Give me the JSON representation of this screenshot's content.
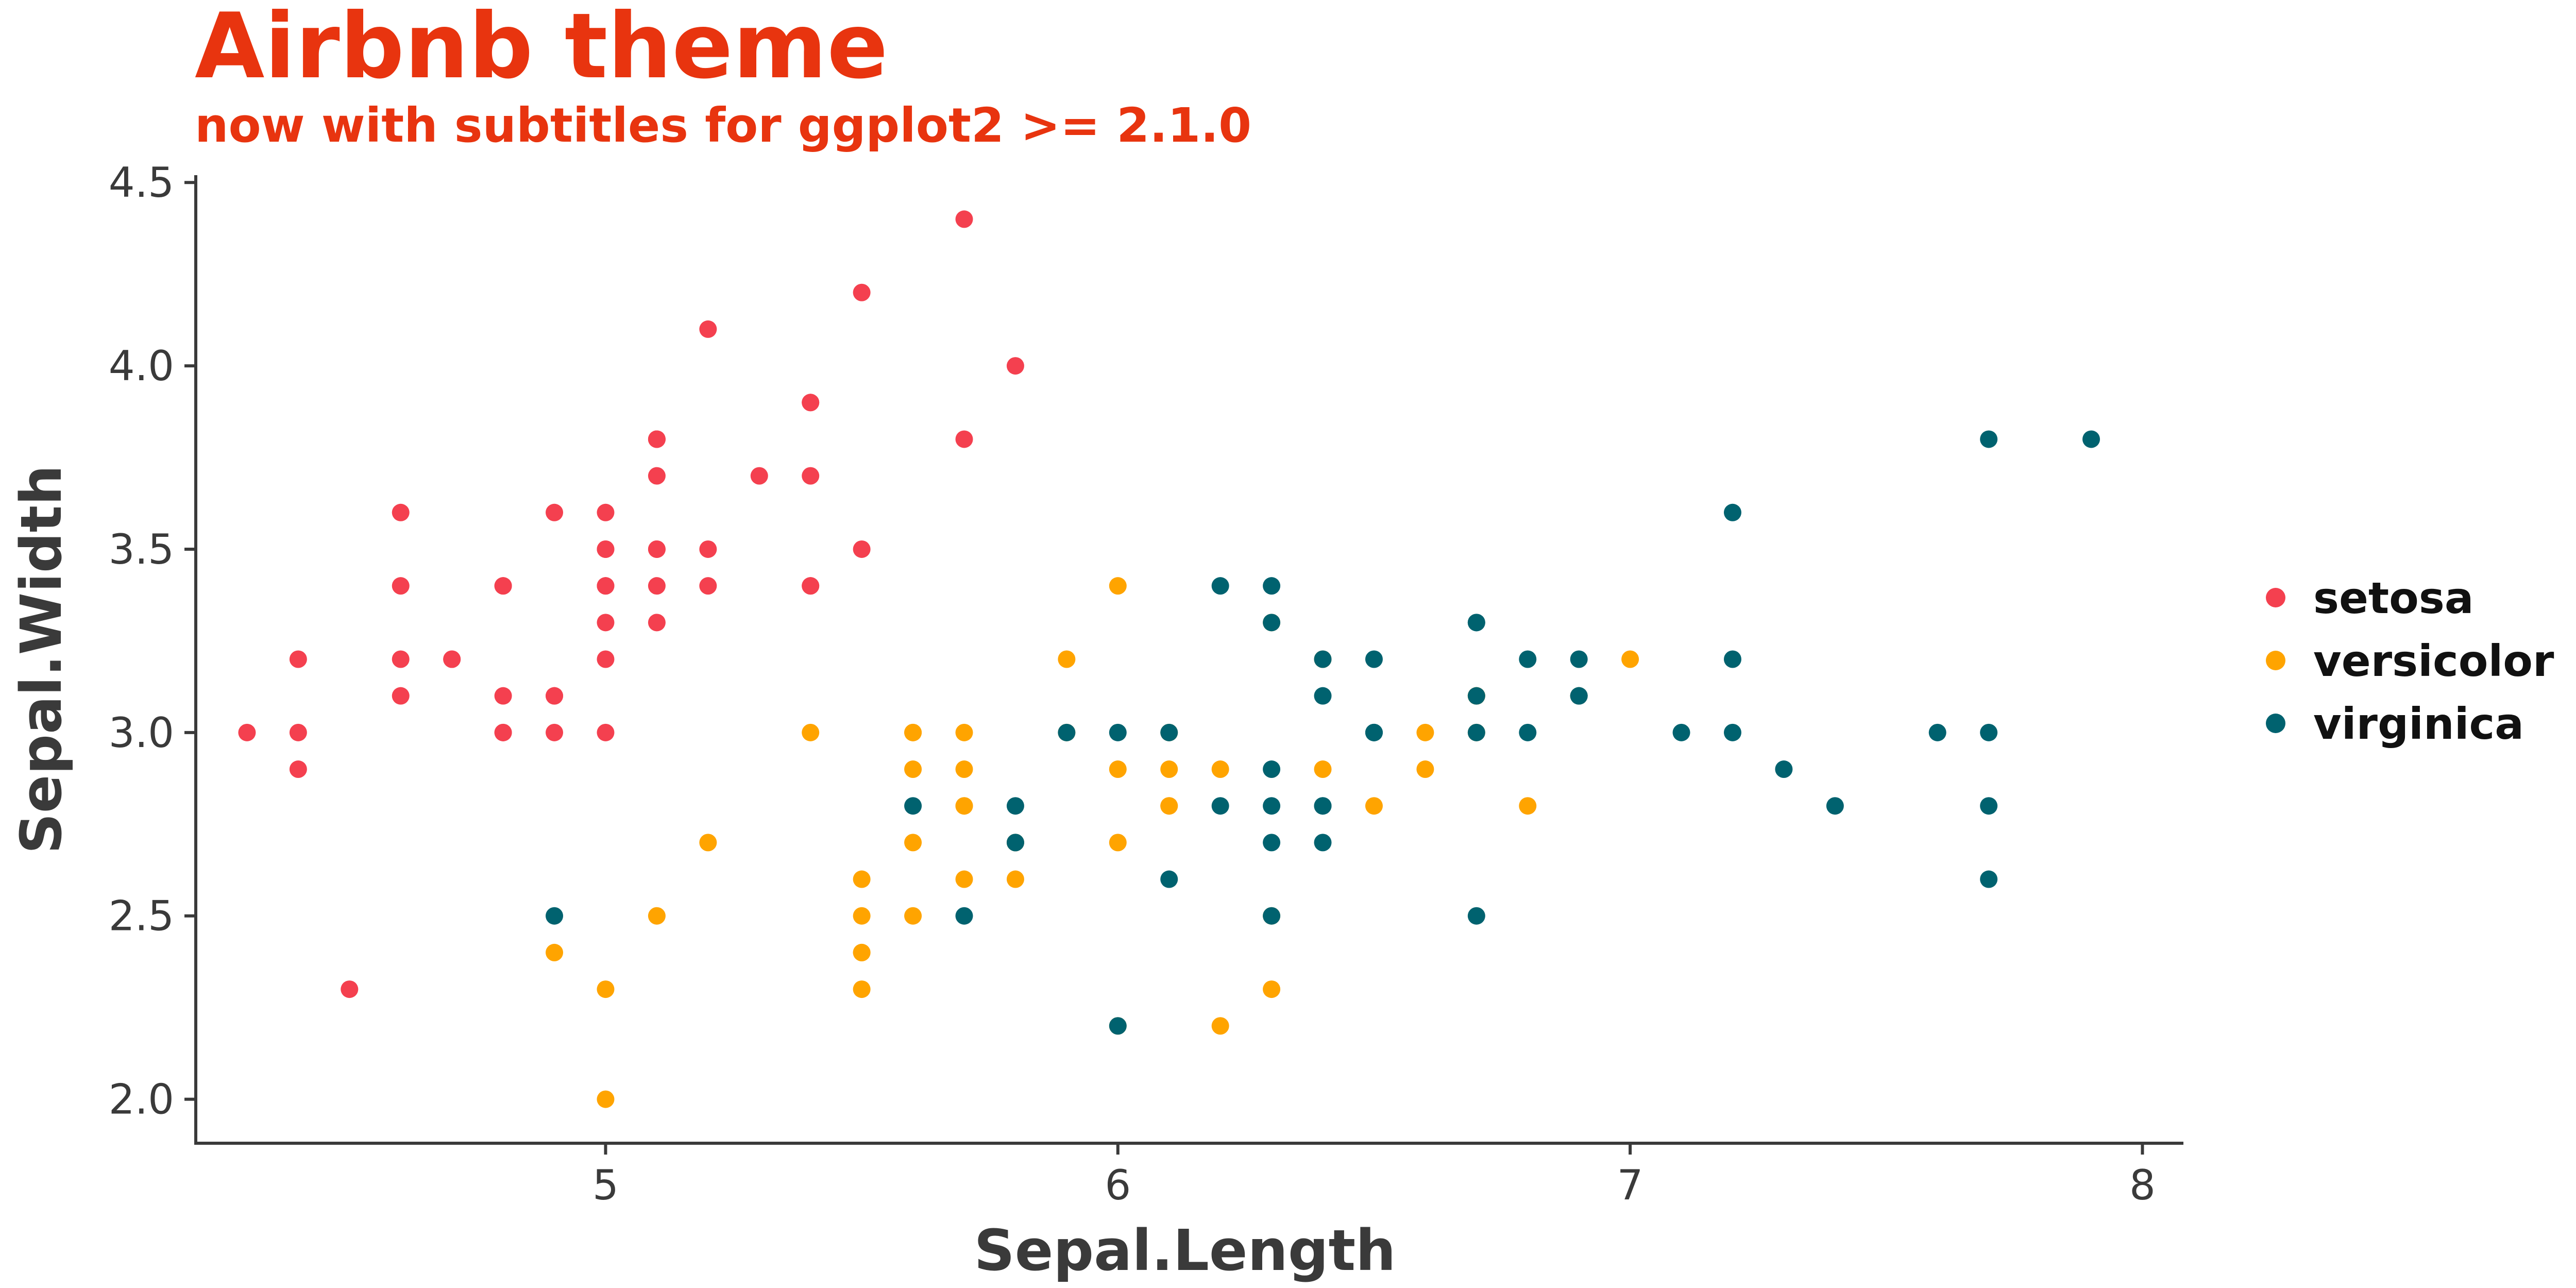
{
  "chart_data": {
    "type": "scatter",
    "title": "Airbnb theme",
    "subtitle": "now with subtitles for ggplot2 >= 2.1.0",
    "xlabel": "Sepal.Length",
    "ylabel": "Sepal.Width",
    "xlim": [
      4.2,
      8.08
    ],
    "ylim": [
      1.88,
      4.52
    ],
    "xticks": [
      5,
      6,
      7,
      8
    ],
    "yticks": [
      2.0,
      2.5,
      3.0,
      3.5,
      4.0,
      4.5
    ],
    "xtick_labels": [
      "5",
      "6",
      "7",
      "8"
    ],
    "ytick_labels": [
      "2.0",
      "2.5",
      "3.0",
      "3.5",
      "4.0",
      "4.5"
    ],
    "grid": false,
    "legend_position": "right",
    "title_color": "#e8340f",
    "series": [
      {
        "name": "setosa",
        "color": "#f4404f",
        "points": [
          [
            5.1,
            3.5
          ],
          [
            4.9,
            3.0
          ],
          [
            4.7,
            3.2
          ],
          [
            4.6,
            3.1
          ],
          [
            5.0,
            3.6
          ],
          [
            5.4,
            3.9
          ],
          [
            4.6,
            3.4
          ],
          [
            5.0,
            3.4
          ],
          [
            4.4,
            2.9
          ],
          [
            4.9,
            3.1
          ],
          [
            5.4,
            3.7
          ],
          [
            4.8,
            3.4
          ],
          [
            4.8,
            3.0
          ],
          [
            4.3,
            3.0
          ],
          [
            5.8,
            4.0
          ],
          [
            5.7,
            4.4
          ],
          [
            5.4,
            3.9
          ],
          [
            5.1,
            3.5
          ],
          [
            5.7,
            3.8
          ],
          [
            5.1,
            3.8
          ],
          [
            5.4,
            3.4
          ],
          [
            5.1,
            3.7
          ],
          [
            4.6,
            3.6
          ],
          [
            5.1,
            3.3
          ],
          [
            4.8,
            3.4
          ],
          [
            5.0,
            3.0
          ],
          [
            5.0,
            3.4
          ],
          [
            5.2,
            3.5
          ],
          [
            5.2,
            3.4
          ],
          [
            4.7,
            3.2
          ],
          [
            4.8,
            3.1
          ],
          [
            5.4,
            3.4
          ],
          [
            5.2,
            4.1
          ],
          [
            5.5,
            4.2
          ],
          [
            4.9,
            3.1
          ],
          [
            5.0,
            3.2
          ],
          [
            5.5,
            3.5
          ],
          [
            4.9,
            3.6
          ],
          [
            4.4,
            3.0
          ],
          [
            5.1,
            3.4
          ],
          [
            5.0,
            3.5
          ],
          [
            4.5,
            2.3
          ],
          [
            4.4,
            3.2
          ],
          [
            5.0,
            3.5
          ],
          [
            5.1,
            3.8
          ],
          [
            4.8,
            3.0
          ],
          [
            5.1,
            3.8
          ],
          [
            4.6,
            3.2
          ],
          [
            5.3,
            3.7
          ],
          [
            5.0,
            3.3
          ]
        ]
      },
      {
        "name": "versicolor",
        "color": "#ffa400",
        "points": [
          [
            7.0,
            3.2
          ],
          [
            6.4,
            3.2
          ],
          [
            6.9,
            3.1
          ],
          [
            5.5,
            2.3
          ],
          [
            6.5,
            2.8
          ],
          [
            5.7,
            2.8
          ],
          [
            6.3,
            3.3
          ],
          [
            4.9,
            2.4
          ],
          [
            6.6,
            2.9
          ],
          [
            5.2,
            2.7
          ],
          [
            5.0,
            2.0
          ],
          [
            5.9,
            3.0
          ],
          [
            6.0,
            2.2
          ],
          [
            6.1,
            2.9
          ],
          [
            5.6,
            2.9
          ],
          [
            6.7,
            3.1
          ],
          [
            5.6,
            3.0
          ],
          [
            5.8,
            2.7
          ],
          [
            6.2,
            2.2
          ],
          [
            5.6,
            2.5
          ],
          [
            5.9,
            3.2
          ],
          [
            6.1,
            2.8
          ],
          [
            6.3,
            2.5
          ],
          [
            6.1,
            2.8
          ],
          [
            6.4,
            2.9
          ],
          [
            6.6,
            3.0
          ],
          [
            6.8,
            2.8
          ],
          [
            6.7,
            3.0
          ],
          [
            6.0,
            2.9
          ],
          [
            5.7,
            2.6
          ],
          [
            5.5,
            2.4
          ],
          [
            5.5,
            2.4
          ],
          [
            5.8,
            2.7
          ],
          [
            6.0,
            2.7
          ],
          [
            5.4,
            3.0
          ],
          [
            6.0,
            3.4
          ],
          [
            6.7,
            3.1
          ],
          [
            6.3,
            2.3
          ],
          [
            5.6,
            3.0
          ],
          [
            5.5,
            2.5
          ],
          [
            5.5,
            2.6
          ],
          [
            6.1,
            3.0
          ],
          [
            5.8,
            2.6
          ],
          [
            5.0,
            2.3
          ],
          [
            5.6,
            2.7
          ],
          [
            5.7,
            3.0
          ],
          [
            5.7,
            2.9
          ],
          [
            6.2,
            2.9
          ],
          [
            5.1,
            2.5
          ],
          [
            5.7,
            2.8
          ]
        ]
      },
      {
        "name": "virginica",
        "color": "#00626f",
        "points": [
          [
            6.3,
            3.3
          ],
          [
            5.8,
            2.7
          ],
          [
            7.1,
            3.0
          ],
          [
            6.3,
            2.9
          ],
          [
            6.5,
            3.0
          ],
          [
            7.6,
            3.0
          ],
          [
            4.9,
            2.5
          ],
          [
            7.3,
            2.9
          ],
          [
            6.7,
            2.5
          ],
          [
            7.2,
            3.6
          ],
          [
            6.5,
            3.2
          ],
          [
            6.4,
            2.7
          ],
          [
            6.8,
            3.0
          ],
          [
            5.7,
            2.5
          ],
          [
            5.8,
            2.8
          ],
          [
            6.4,
            3.2
          ],
          [
            6.5,
            3.0
          ],
          [
            7.7,
            3.8
          ],
          [
            7.7,
            2.6
          ],
          [
            6.0,
            2.2
          ],
          [
            6.9,
            3.2
          ],
          [
            5.6,
            2.8
          ],
          [
            7.7,
            2.8
          ],
          [
            6.3,
            2.7
          ],
          [
            6.7,
            3.3
          ],
          [
            7.2,
            3.2
          ],
          [
            6.2,
            2.8
          ],
          [
            6.1,
            3.0
          ],
          [
            6.4,
            2.8
          ],
          [
            7.2,
            3.0
          ],
          [
            7.4,
            2.8
          ],
          [
            7.9,
            3.8
          ],
          [
            6.4,
            2.8
          ],
          [
            6.3,
            2.8
          ],
          [
            6.1,
            2.6
          ],
          [
            7.7,
            3.0
          ],
          [
            6.3,
            3.4
          ],
          [
            6.4,
            3.1
          ],
          [
            6.0,
            3.0
          ],
          [
            6.9,
            3.1
          ],
          [
            6.7,
            3.1
          ],
          [
            6.9,
            3.1
          ],
          [
            5.8,
            2.7
          ],
          [
            6.8,
            3.2
          ],
          [
            6.7,
            3.3
          ],
          [
            6.7,
            3.0
          ],
          [
            6.3,
            2.5
          ],
          [
            6.5,
            3.0
          ],
          [
            6.2,
            3.4
          ],
          [
            5.9,
            3.0
          ]
        ]
      }
    ]
  }
}
